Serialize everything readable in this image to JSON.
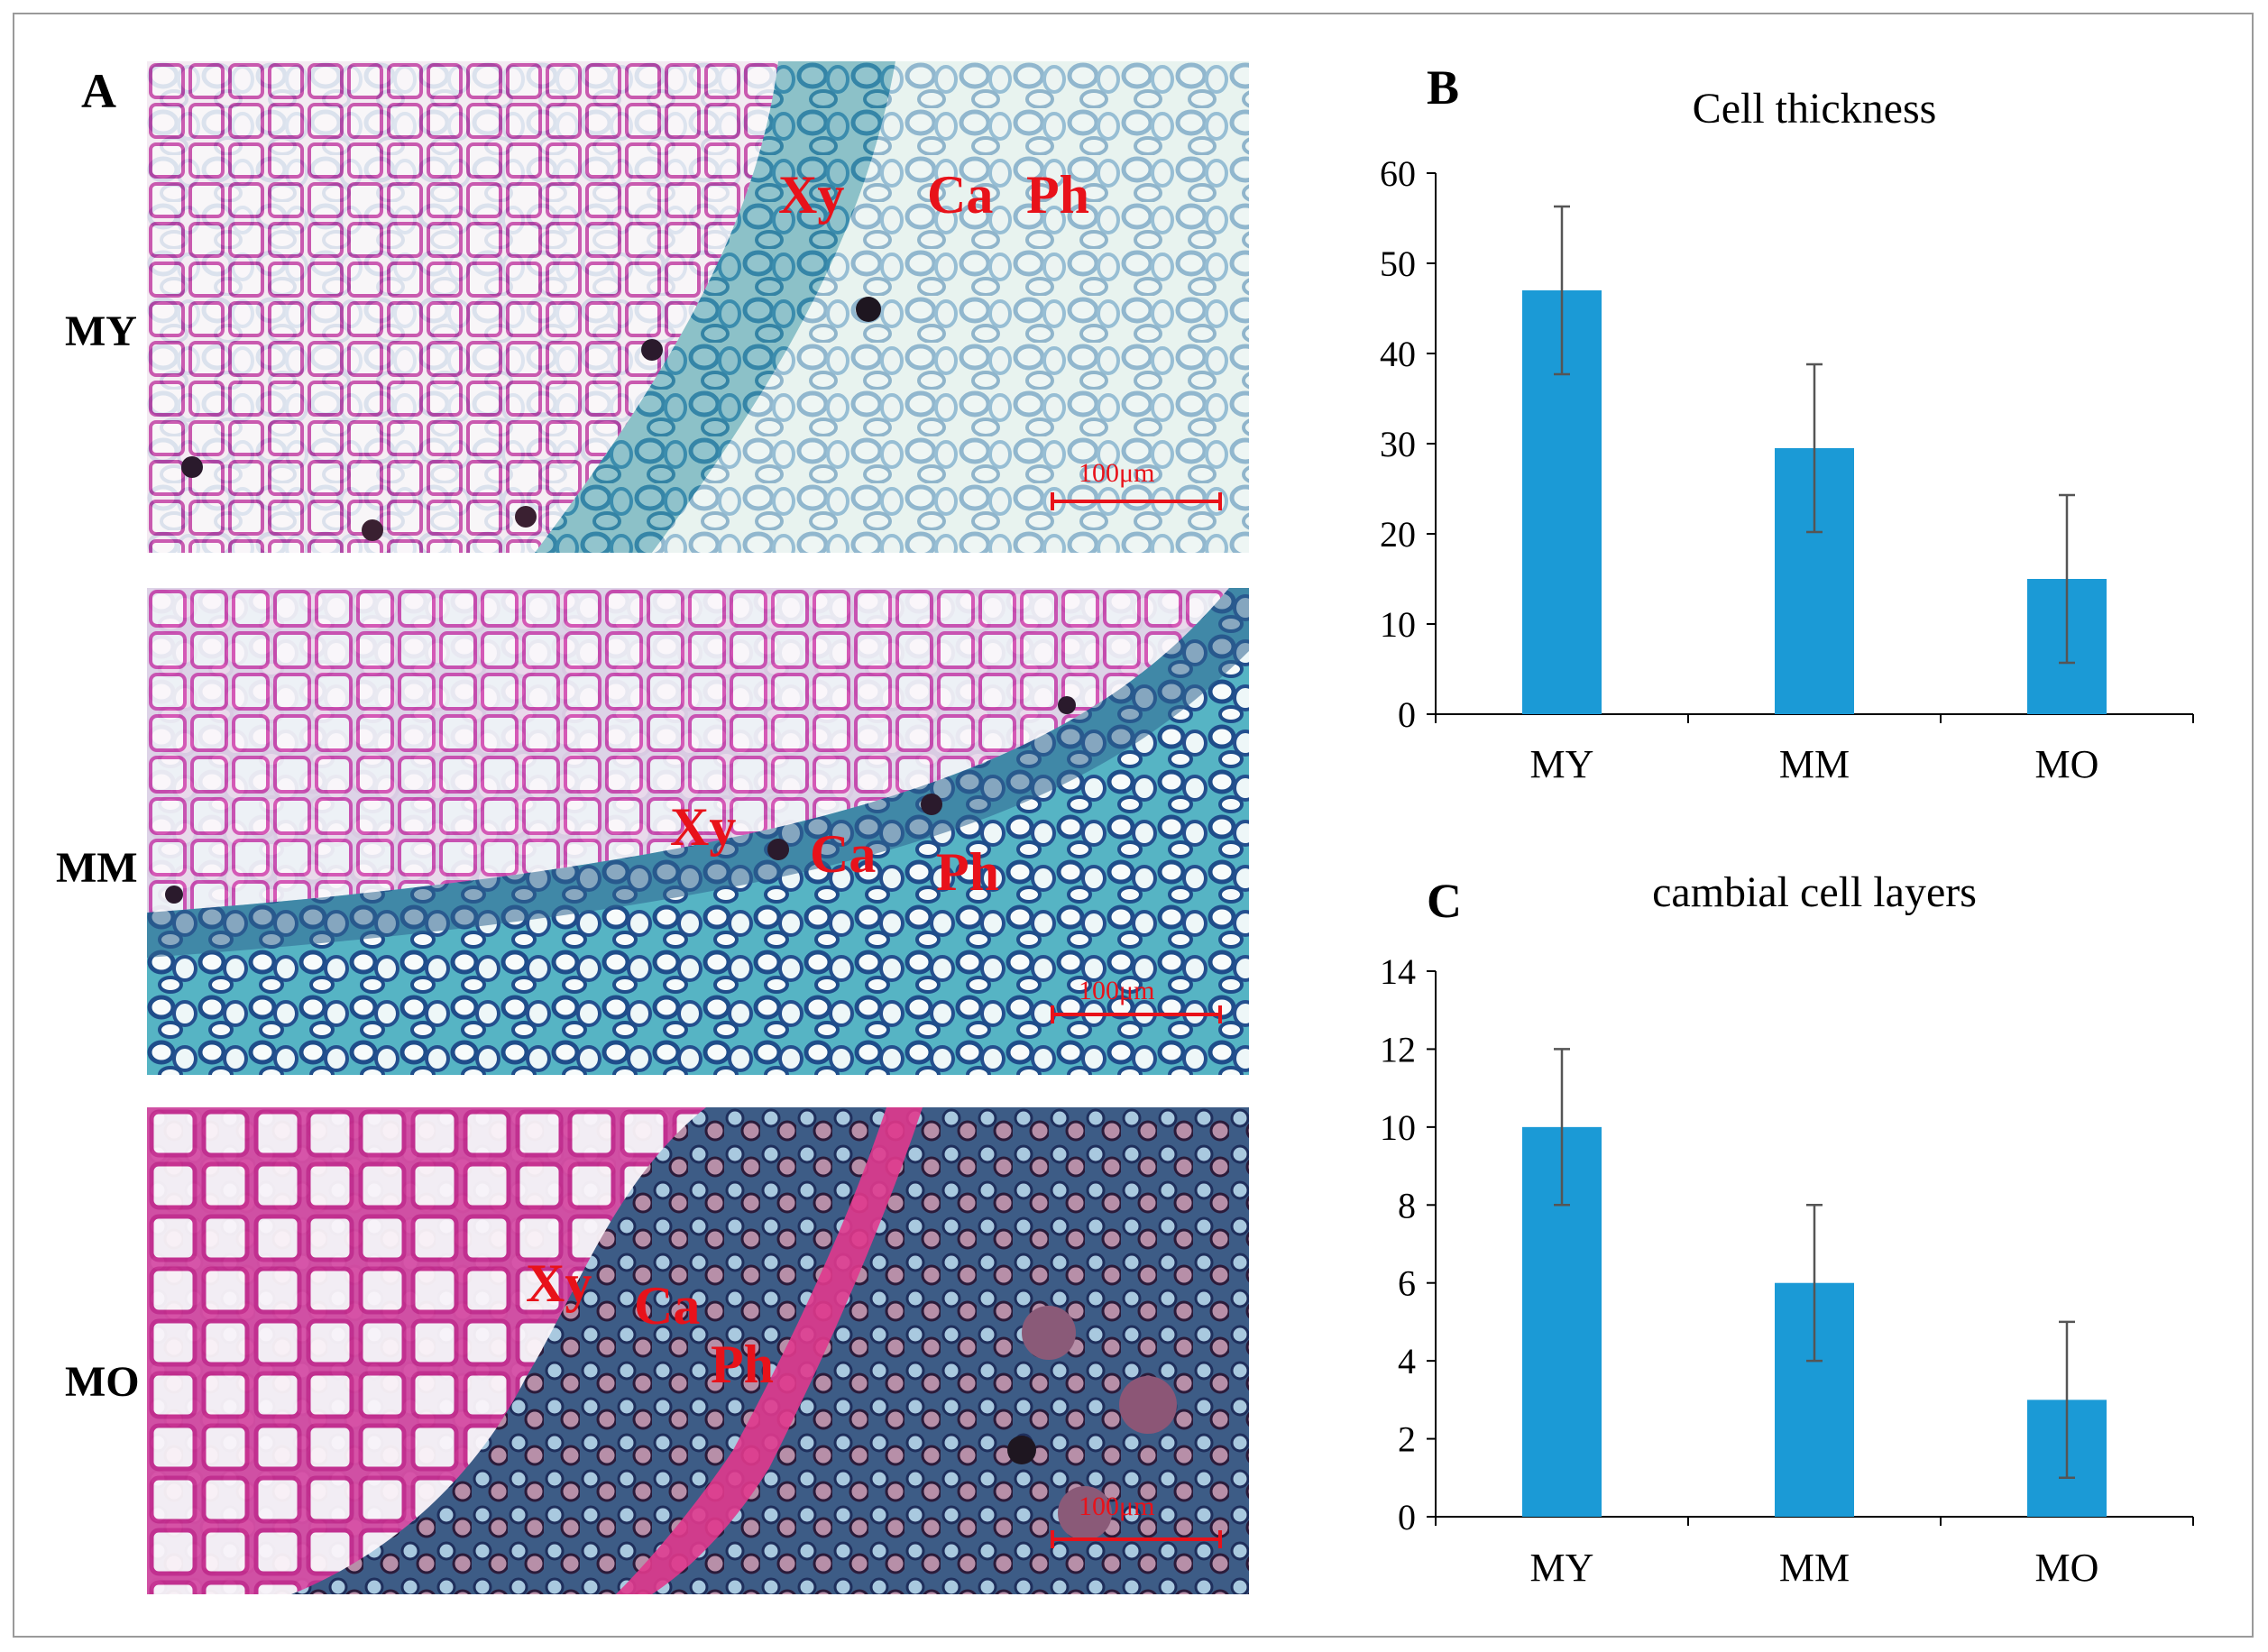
{
  "panel_a": {
    "letter": "A",
    "rows": [
      {
        "label": "MY",
        "annotations": [
          "Xy",
          "Ca",
          "Ph"
        ],
        "scale": "100μm"
      },
      {
        "label": "MM",
        "annotations": [
          "Xy",
          "Ca",
          "Ph"
        ],
        "scale": "100μm"
      },
      {
        "label": "MO",
        "annotations": [
          "Xy",
          "Ca",
          "Ph"
        ],
        "scale": "100μm"
      }
    ]
  },
  "colors": {
    "bar": "#1b9ad6",
    "annotation": "#e8121a",
    "error": "#555555"
  },
  "chart_data": [
    {
      "panel": "B",
      "type": "bar",
      "title": "Cell thickness",
      "categories": [
        "MY",
        "MM",
        "MO"
      ],
      "values": [
        47,
        29.5,
        15
      ],
      "errors": [
        9.3,
        9.3,
        9.3
      ],
      "ylim": [
        0,
        60
      ],
      "yticks": [
        0,
        10,
        20,
        30,
        40,
        50,
        60
      ],
      "xlabel": "",
      "ylabel": ""
    },
    {
      "panel": "C",
      "type": "bar",
      "title": "cambial cell layers",
      "categories": [
        "MY",
        "MM",
        "MO"
      ],
      "values": [
        10,
        6,
        3
      ],
      "errors": [
        2,
        2,
        2
      ],
      "ylim": [
        0,
        14
      ],
      "yticks": [
        0,
        2,
        4,
        6,
        8,
        10,
        12,
        14
      ],
      "xlabel": "",
      "ylabel": ""
    }
  ]
}
